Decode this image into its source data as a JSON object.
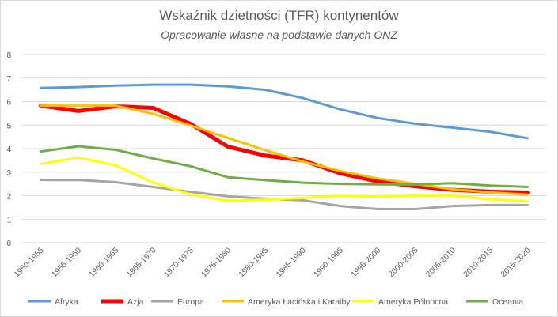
{
  "chart_data": {
    "type": "line",
    "title": "Wskaźnik dzietności (TFR) kontynentów",
    "subtitle": "Opracowanie własne na podstawie danych ONZ",
    "xlabel": "",
    "ylabel": "",
    "ylim": [
      0,
      8
    ],
    "yticks": [
      "0",
      "1",
      "2",
      "3",
      "4",
      "5",
      "6",
      "7",
      "8"
    ],
    "grid": true,
    "legend_position": "bottom",
    "categories": [
      "1950-1955",
      "1955-1960",
      "1960-1965",
      "1965-1970",
      "1970-1975",
      "1975-1980",
      "1980-1985",
      "1985-1990",
      "1990-1995",
      "1995-2000",
      "2000-2005",
      "2005-2010",
      "2010-2015",
      "2015-2020"
    ],
    "series": [
      {
        "name": "Afryka",
        "color": "#5b9bd5",
        "width": 3,
        "values": [
          6.58,
          6.62,
          6.68,
          6.72,
          6.72,
          6.65,
          6.5,
          6.15,
          5.67,
          5.3,
          5.06,
          4.89,
          4.72,
          4.44
        ]
      },
      {
        "name": "Azja",
        "color": "#ff0000",
        "width": 5,
        "values": [
          5.83,
          5.6,
          5.8,
          5.73,
          5.05,
          4.08,
          3.7,
          3.5,
          2.95,
          2.6,
          2.4,
          2.25,
          2.17,
          2.13
        ]
      },
      {
        "name": "Europa",
        "color": "#a5a5a5",
        "width": 3,
        "values": [
          2.67,
          2.67,
          2.57,
          2.37,
          2.16,
          1.97,
          1.87,
          1.8,
          1.56,
          1.43,
          1.43,
          1.56,
          1.6,
          1.6
        ]
      },
      {
        "name": "Ameryka Łacińska i Karaiby",
        "color": "#ffc000",
        "width": 3,
        "values": [
          5.83,
          5.83,
          5.83,
          5.48,
          4.98,
          4.45,
          3.93,
          3.45,
          3.05,
          2.73,
          2.5,
          2.27,
          2.14,
          2.04
        ]
      },
      {
        "name": "Ameryka Północna",
        "color": "#ffff00",
        "width": 3,
        "values": [
          3.35,
          3.62,
          3.28,
          2.55,
          2.05,
          1.78,
          1.83,
          1.9,
          1.99,
          1.96,
          2.0,
          2.0,
          1.85,
          1.75
        ]
      },
      {
        "name": "Oceania",
        "color": "#70ad47",
        "width": 3,
        "values": [
          3.88,
          4.1,
          3.95,
          3.58,
          3.25,
          2.78,
          2.66,
          2.55,
          2.5,
          2.48,
          2.47,
          2.53,
          2.43,
          2.37
        ]
      }
    ]
  }
}
